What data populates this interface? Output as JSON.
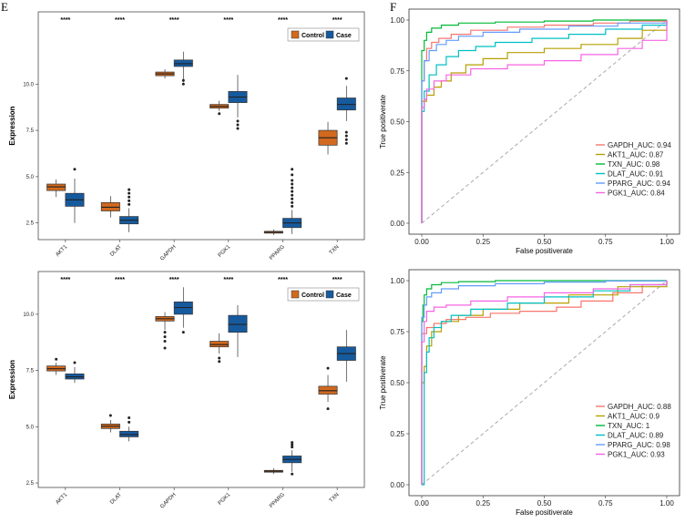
{
  "panel_labels": {
    "left": "E",
    "right": "F"
  },
  "colors": {
    "control": "#d2691e",
    "case": "#165a9e",
    "diagonal": "#aaaaaa"
  },
  "chart_data": [
    {
      "type": "boxplot",
      "panel": "E-top",
      "ylabel": "Expression",
      "ylim": [
        1.6,
        13.9
      ],
      "yticks": [
        2.5,
        5.0,
        7.5,
        10.0
      ],
      "ytick_labels": [
        "2.5",
        "5.0",
        "7.5",
        "10.0"
      ],
      "legend": [
        "Control",
        "Case"
      ],
      "significance": "****",
      "categories": [
        "AKT1",
        "DLAT",
        "GAPDH",
        "PGK1",
        "PPARG",
        "TXN"
      ],
      "series": [
        {
          "name": "Control",
          "boxes": [
            {
              "min": 3.9,
              "q1": 4.25,
              "median": 4.45,
              "q3": 4.6,
              "max": 4.85,
              "outliers": []
            },
            {
              "min": 2.8,
              "q1": 3.15,
              "median": 3.35,
              "q3": 3.6,
              "max": 3.95,
              "outliers": []
            },
            {
              "min": 10.3,
              "q1": 10.45,
              "median": 10.55,
              "q3": 10.65,
              "max": 10.8,
              "outliers": []
            },
            {
              "min": 8.55,
              "q1": 8.7,
              "median": 8.8,
              "q3": 8.9,
              "max": 9.1,
              "outliers": [
                8.4
              ]
            },
            {
              "min": 1.85,
              "q1": 1.95,
              "median": 2.0,
              "q3": 2.05,
              "max": 2.15,
              "outliers": []
            },
            {
              "min": 6.2,
              "q1": 6.7,
              "median": 7.1,
              "q3": 7.5,
              "max": 7.95,
              "outliers": []
            }
          ]
        },
        {
          "name": "Case",
          "boxes": [
            {
              "min": 2.5,
              "q1": 3.4,
              "median": 3.75,
              "q3": 4.1,
              "max": 4.9,
              "outliers": [
                5.4
              ]
            },
            {
              "min": 2.0,
              "q1": 2.45,
              "median": 2.65,
              "q3": 2.85,
              "max": 3.3,
              "outliers": [
                3.5,
                3.7,
                3.9,
                4.1,
                4.3
              ]
            },
            {
              "min": 10.1,
              "q1": 10.95,
              "median": 11.1,
              "q3": 11.3,
              "max": 11.75,
              "outliers": [
                10.0,
                10.2
              ]
            },
            {
              "min": 8.2,
              "q1": 9.0,
              "median": 9.3,
              "q3": 9.6,
              "max": 10.5,
              "outliers": [
                7.6,
                7.8,
                8.0
              ]
            },
            {
              "min": 1.9,
              "q1": 2.25,
              "median": 2.5,
              "q3": 2.75,
              "max": 3.2,
              "outliers": [
                3.4,
                3.6,
                3.8,
                4.0,
                4.2,
                4.4,
                4.6,
                4.8,
                5.1,
                5.4
              ]
            },
            {
              "min": 8.0,
              "q1": 8.6,
              "median": 8.9,
              "q3": 9.25,
              "max": 9.9,
              "outliers": [
                6.8,
                7.0,
                7.2,
                7.4,
                10.3
              ]
            }
          ]
        }
      ]
    },
    {
      "type": "boxplot",
      "panel": "E-bottom",
      "ylabel": "Expression",
      "ylim": [
        2.3,
        11.9
      ],
      "yticks": [
        2.5,
        5.0,
        7.5,
        10.0
      ],
      "ytick_labels": [
        "2.5",
        "5.0",
        "7.5",
        "10.0"
      ],
      "legend": [
        "Control",
        "Case"
      ],
      "significance": "****",
      "categories": [
        "AKT1",
        "DLAT",
        "GAPDH",
        "PGK1",
        "PPARG",
        "TXN"
      ],
      "series": [
        {
          "name": "Control",
          "boxes": [
            {
              "min": 7.3,
              "q1": 7.48,
              "median": 7.58,
              "q3": 7.7,
              "max": 7.85,
              "outliers": [
                8.0
              ]
            },
            {
              "min": 4.75,
              "q1": 4.92,
              "median": 5.02,
              "q3": 5.12,
              "max": 5.3,
              "outliers": [
                5.5
              ]
            },
            {
              "min": 9.3,
              "q1": 9.7,
              "median": 9.8,
              "q3": 9.9,
              "max": 10.1,
              "outliers": [
                8.5,
                8.8,
                9.0,
                9.2
              ]
            },
            {
              "min": 8.25,
              "q1": 8.55,
              "median": 8.65,
              "q3": 8.8,
              "max": 9.15,
              "outliers": [
                7.9,
                8.05
              ]
            },
            {
              "min": 2.9,
              "q1": 2.98,
              "median": 3.02,
              "q3": 3.06,
              "max": 3.15,
              "outliers": []
            },
            {
              "min": 6.1,
              "q1": 6.45,
              "median": 6.6,
              "q3": 6.8,
              "max": 7.3,
              "outliers": [
                5.8,
                7.6
              ]
            }
          ]
        },
        {
          "name": "Case",
          "boxes": [
            {
              "min": 6.95,
              "q1": 7.12,
              "median": 7.22,
              "q3": 7.35,
              "max": 7.65,
              "outliers": [
                7.85
              ]
            },
            {
              "min": 4.35,
              "q1": 4.55,
              "median": 4.65,
              "q3": 4.8,
              "max": 5.0,
              "outliers": [
                5.2,
                5.4
              ]
            },
            {
              "min": 9.4,
              "q1": 10.0,
              "median": 10.3,
              "q3": 10.55,
              "max": 11.2,
              "outliers": [
                9.2
              ]
            },
            {
              "min": 8.1,
              "q1": 9.2,
              "median": 9.55,
              "q3": 9.95,
              "max": 10.4,
              "outliers": []
            },
            {
              "min": 3.0,
              "q1": 3.4,
              "median": 3.55,
              "q3": 3.7,
              "max": 3.95,
              "outliers": [
                2.9,
                4.1,
                4.2,
                4.3
              ]
            },
            {
              "min": 7.0,
              "q1": 7.95,
              "median": 8.25,
              "q3": 8.55,
              "max": 9.3,
              "outliers": []
            }
          ]
        }
      ]
    },
    {
      "type": "line",
      "panel": "F-top",
      "xlabel": "False positiverate",
      "ylabel": "True positiverate",
      "xlim": [
        0,
        1
      ],
      "ylim": [
        0,
        1
      ],
      "ticks": [
        0.0,
        0.25,
        0.5,
        0.75,
        1.0
      ],
      "tick_labels": [
        "0.00",
        "0.25",
        "0.50",
        "0.75",
        "1.00"
      ],
      "series": [
        {
          "name": "GAPDH_AUC: 0.94",
          "color": "#f8766d",
          "x": [
            0,
            0,
            0.01,
            0.02,
            0.04,
            0.07,
            0.12,
            0.2,
            0.35,
            0.5,
            0.7,
            0.85,
            1
          ],
          "y": [
            0,
            0.7,
            0.8,
            0.86,
            0.89,
            0.91,
            0.93,
            0.95,
            0.965,
            0.975,
            0.985,
            0.995,
            1
          ]
        },
        {
          "name": "AKT1_AUC: 0.87",
          "color": "#b79f00",
          "x": [
            0,
            0,
            0.02,
            0.05,
            0.08,
            0.12,
            0.18,
            0.25,
            0.35,
            0.5,
            0.65,
            0.8,
            0.9,
            1
          ],
          "y": [
            0,
            0.6,
            0.63,
            0.67,
            0.7,
            0.74,
            0.78,
            0.81,
            0.84,
            0.86,
            0.88,
            0.91,
            0.95,
            1
          ]
        },
        {
          "name": "TXN_AUC: 0.98",
          "color": "#00ba38",
          "x": [
            0,
            0,
            0.01,
            0.02,
            0.04,
            0.08,
            0.15,
            0.3,
            0.5,
            0.7,
            1
          ],
          "y": [
            0,
            0.85,
            0.9,
            0.94,
            0.96,
            0.975,
            0.985,
            0.99,
            0.995,
            1,
            1
          ]
        },
        {
          "name": "DLAT_AUC: 0.91",
          "color": "#00bfc4",
          "x": [
            0,
            0,
            0.01,
            0.03,
            0.06,
            0.1,
            0.15,
            0.22,
            0.3,
            0.45,
            0.6,
            0.75,
            0.9,
            1
          ],
          "y": [
            0,
            0.55,
            0.65,
            0.73,
            0.78,
            0.82,
            0.85,
            0.87,
            0.89,
            0.91,
            0.93,
            0.955,
            0.975,
            1
          ]
        },
        {
          "name": "PPARG_AUC: 0.94",
          "color": "#619cff",
          "x": [
            0,
            0,
            0.01,
            0.03,
            0.06,
            0.1,
            0.15,
            0.25,
            0.4,
            0.6,
            0.8,
            1
          ],
          "y": [
            0,
            0.7,
            0.8,
            0.85,
            0.88,
            0.9,
            0.92,
            0.94,
            0.955,
            0.97,
            0.985,
            1
          ]
        },
        {
          "name": "PGK1_AUC: 0.84",
          "color": "#f564e3",
          "x": [
            0,
            0,
            0.01,
            0.02,
            0.05,
            0.1,
            0.2,
            0.35,
            0.5,
            0.65,
            0.8,
            0.9,
            1
          ],
          "y": [
            0,
            0.57,
            0.61,
            0.66,
            0.7,
            0.73,
            0.76,
            0.78,
            0.8,
            0.83,
            0.86,
            0.9,
            1
          ]
        }
      ]
    },
    {
      "type": "line",
      "panel": "F-bottom",
      "xlabel": "False positiverate",
      "ylabel": "True positiverate",
      "xlim": [
        0,
        1
      ],
      "ylim": [
        0,
        1
      ],
      "ticks": [
        0.0,
        0.25,
        0.5,
        0.75,
        1.0
      ],
      "tick_labels": [
        "0.00",
        "0.25",
        "0.50",
        "0.75",
        "1.00"
      ],
      "series": [
        {
          "name": "GAPDH_AUC: 0.88",
          "color": "#f8766d",
          "x": [
            0,
            0,
            0.02,
            0.05,
            0.1,
            0.18,
            0.28,
            0.4,
            0.55,
            0.65,
            0.78,
            0.9,
            1
          ],
          "y": [
            0,
            0.74,
            0.77,
            0.79,
            0.81,
            0.82,
            0.84,
            0.85,
            0.87,
            0.9,
            0.94,
            0.98,
            1
          ]
        },
        {
          "name": "AKT1_AUC: 0.9",
          "color": "#b79f00",
          "x": [
            0,
            0,
            0.01,
            0.02,
            0.04,
            0.08,
            0.15,
            0.25,
            0.4,
            0.6,
            0.8,
            1
          ],
          "y": [
            0,
            0.5,
            0.58,
            0.68,
            0.75,
            0.8,
            0.83,
            0.86,
            0.89,
            0.93,
            0.97,
            1
          ]
        },
        {
          "name": "TXN_AUC: 1",
          "color": "#00ba38",
          "x": [
            0,
            0,
            0.005,
            0.01,
            0.02,
            0.04,
            0.08,
            0.15,
            0.3,
            1
          ],
          "y": [
            0,
            0.8,
            0.88,
            0.93,
            0.96,
            0.98,
            0.99,
            0.995,
            1,
            1
          ]
        },
        {
          "name": "DLAT_AUC: 0.89",
          "color": "#00bfc4",
          "x": [
            0,
            0.01,
            0.01,
            0.02,
            0.03,
            0.05,
            0.08,
            0.12,
            0.2,
            0.35,
            0.5,
            0.7,
            0.85,
            1
          ],
          "y": [
            0,
            0.4,
            0.55,
            0.65,
            0.72,
            0.77,
            0.8,
            0.83,
            0.86,
            0.89,
            0.92,
            0.95,
            0.98,
            1
          ]
        },
        {
          "name": "PPARG_AUC: 0.98",
          "color": "#619cff",
          "x": [
            0,
            0,
            0.01,
            0.02,
            0.04,
            0.08,
            0.15,
            0.3,
            0.5,
            0.75,
            1
          ],
          "y": [
            0,
            0.82,
            0.88,
            0.92,
            0.94,
            0.96,
            0.975,
            0.985,
            0.993,
            0.998,
            1
          ]
        },
        {
          "name": "PGK1_AUC: 0.93",
          "color": "#f564e3",
          "x": [
            0,
            0,
            0.01,
            0.02,
            0.05,
            0.1,
            0.2,
            0.35,
            0.5,
            0.7,
            0.85,
            1
          ],
          "y": [
            0,
            0.7,
            0.8,
            0.85,
            0.87,
            0.88,
            0.9,
            0.92,
            0.94,
            0.96,
            0.98,
            1
          ]
        }
      ]
    }
  ]
}
